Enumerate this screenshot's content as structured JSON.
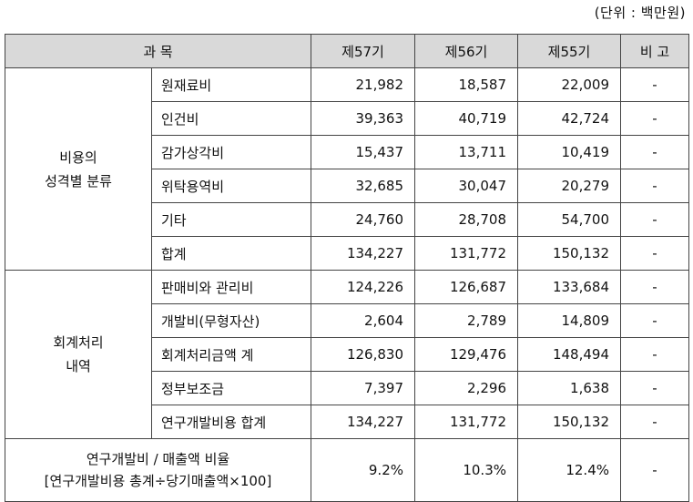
{
  "unit_label": "(단위 : 백만원)",
  "header": {
    "subject": "과 목",
    "col1": "제57기",
    "col2": "제56기",
    "col3": "제55기",
    "note": "비 고"
  },
  "groups": [
    {
      "label_lines": [
        "비용의",
        "성격별 분류"
      ],
      "rows": [
        {
          "item": "원재료비",
          "v57": "21,982",
          "v56": "18,587",
          "v55": "22,009",
          "note": "-"
        },
        {
          "item": "인건비",
          "v57": "39,363",
          "v56": "40,719",
          "v55": "42,724",
          "note": "-"
        },
        {
          "item": "감가상각비",
          "v57": "15,437",
          "v56": "13,711",
          "v55": "10,419",
          "note": "-"
        },
        {
          "item": "위탁용역비",
          "v57": "32,685",
          "v56": "30,047",
          "v55": "20,279",
          "note": "-"
        },
        {
          "item": "기타",
          "v57": "24,760",
          "v56": "28,708",
          "v55": "54,700",
          "note": "-"
        },
        {
          "item": "합계",
          "v57": "134,227",
          "v56": "131,772",
          "v55": "150,132",
          "note": "-"
        }
      ]
    },
    {
      "label_lines": [
        "회계처리",
        "내역"
      ],
      "rows": [
        {
          "item": "판매비와 관리비",
          "v57": "124,226",
          "v56": "126,687",
          "v55": "133,684",
          "note": "-"
        },
        {
          "item": "개발비(무형자산)",
          "v57": "2,604",
          "v56": "2,789",
          "v55": "14,809",
          "note": "-"
        },
        {
          "item": "회계처리금액 계",
          "v57": "126,830",
          "v56": "129,476",
          "v55": "148,494",
          "note": "-"
        },
        {
          "item": "정부보조금",
          "v57": "7,397",
          "v56": "2,296",
          "v55": "1,638",
          "note": "-"
        },
        {
          "item": "연구개발비용 합계",
          "v57": "134,227",
          "v56": "131,772",
          "v55": "150,132",
          "note": "-"
        }
      ]
    }
  ],
  "ratio": {
    "line1": "연구개발비 / 매출액 비율",
    "line2": "[연구개발비용 총계÷당기매출액×100]",
    "v57": "9.2%",
    "v56": "10.3%",
    "v55": "12.4%",
    "note": "-"
  }
}
